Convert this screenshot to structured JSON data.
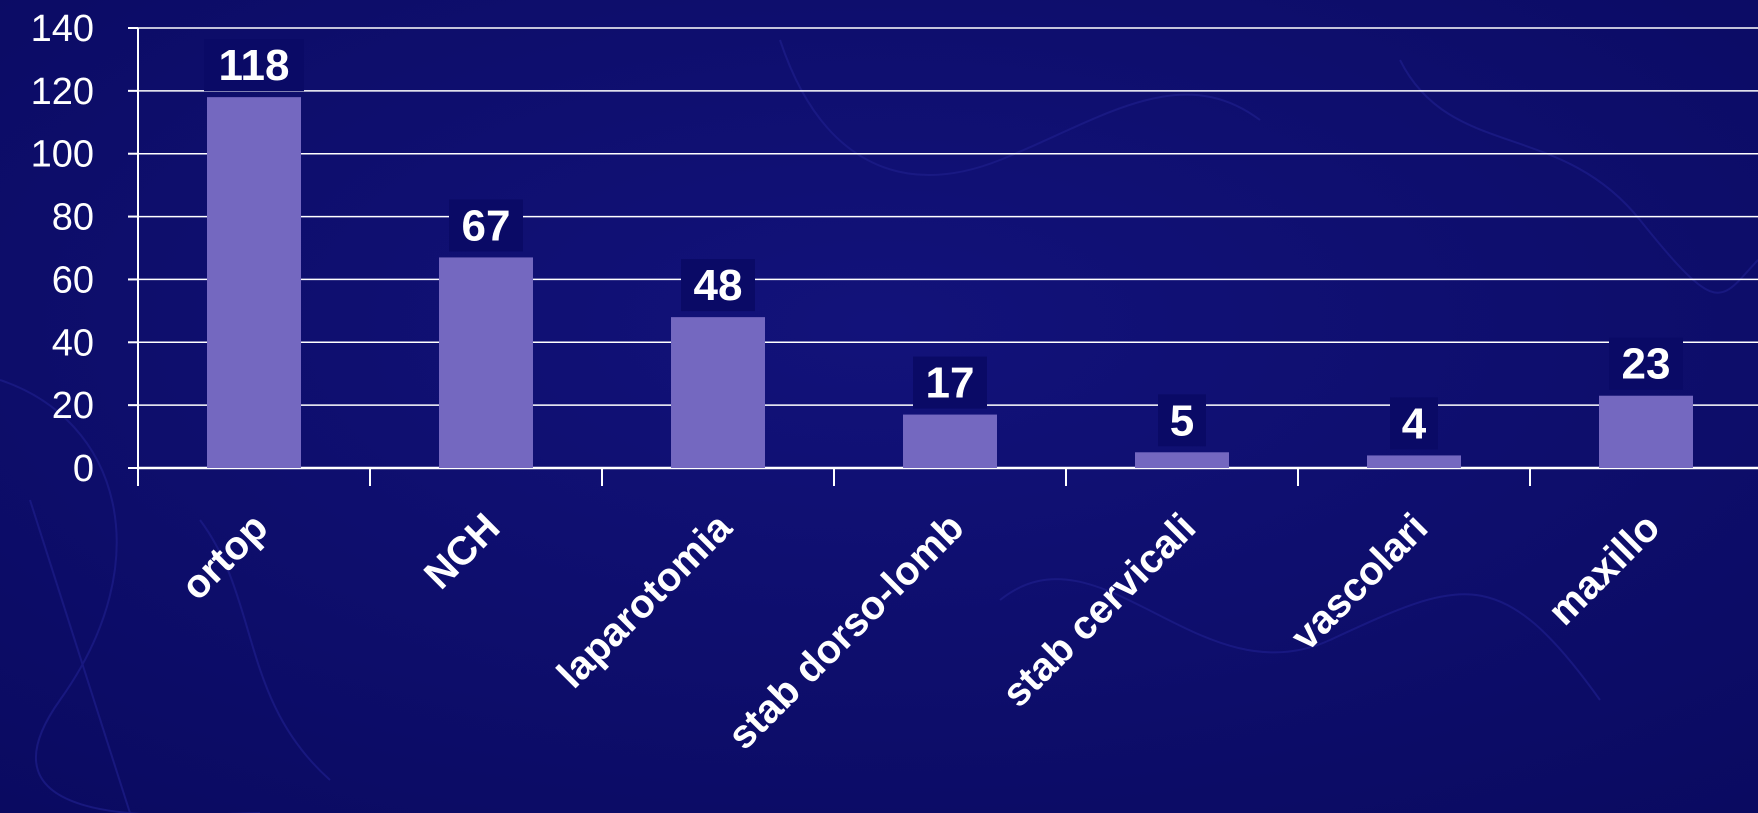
{
  "chart_data": {
    "type": "bar",
    "title": "",
    "xlabel": "",
    "ylabel": "",
    "categories": [
      "ortop",
      "NCH",
      "laparotomia",
      "stab dorso-lomb",
      "stab cervicali",
      "vascolari",
      "maxillo"
    ],
    "values": [
      118,
      67,
      48,
      17,
      5,
      4,
      23
    ],
    "ylim": [
      0,
      140
    ],
    "yticks": [
      0,
      20,
      40,
      60,
      80,
      100,
      120,
      140
    ],
    "grid": true,
    "legend": "none",
    "colors": {
      "background": "#0d0d6b",
      "bar": "#7468c0",
      "grid": "#ffffff",
      "text": "#ffffff",
      "label_box": "#0a0a66"
    }
  }
}
